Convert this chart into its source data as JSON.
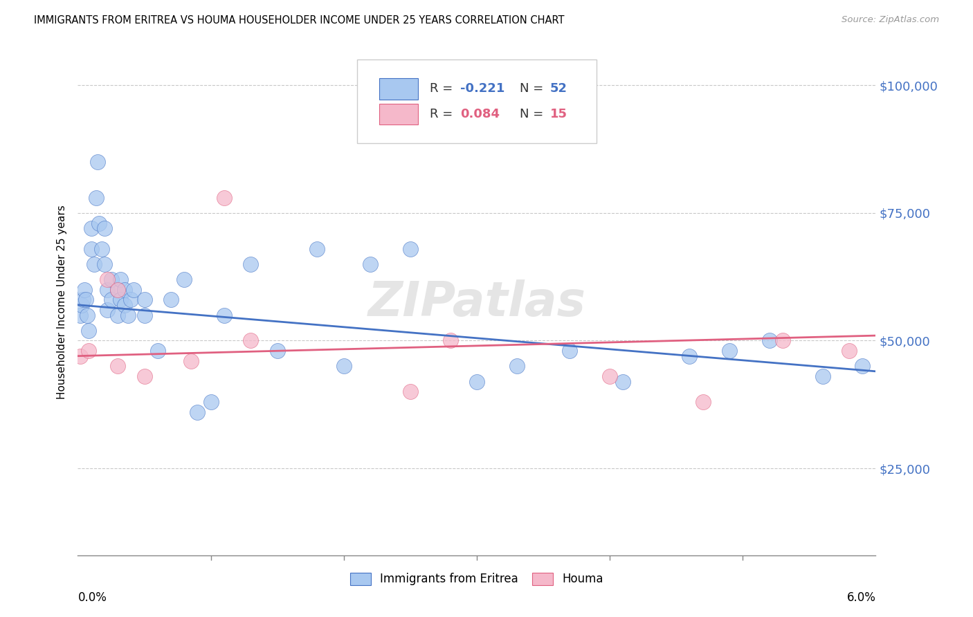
{
  "title": "IMMIGRANTS FROM ERITREA VS HOUMA HOUSEHOLDER INCOME UNDER 25 YEARS CORRELATION CHART",
  "source": "Source: ZipAtlas.com",
  "ylabel": "Householder Income Under 25 years",
  "ytick_labels": [
    "$25,000",
    "$50,000",
    "$75,000",
    "$100,000"
  ],
  "ytick_values": [
    25000,
    50000,
    75000,
    100000
  ],
  "xmin": 0.0,
  "xmax": 0.06,
  "ymin": 8000,
  "ymax": 107000,
  "legend1_r": "-0.221",
  "legend1_n": "52",
  "legend2_r": "0.084",
  "legend2_n": "15",
  "blue_color": "#a8c8f0",
  "pink_color": "#f5b8ca",
  "blue_line_color": "#4472c4",
  "pink_line_color": "#e06080",
  "watermark": "ZIPatlas",
  "background_color": "#ffffff",
  "grid_color": "#c8c8c8",
  "label_blue": "Immigrants from Eritrea",
  "label_pink": "Houma",
  "blue_x": [
    0.0002,
    0.0003,
    0.0004,
    0.0005,
    0.0006,
    0.0007,
    0.0008,
    0.001,
    0.001,
    0.0012,
    0.0014,
    0.0015,
    0.0016,
    0.0018,
    0.002,
    0.002,
    0.0022,
    0.0022,
    0.0025,
    0.0025,
    0.003,
    0.003,
    0.0032,
    0.0032,
    0.0035,
    0.0035,
    0.0038,
    0.004,
    0.0042,
    0.005,
    0.005,
    0.006,
    0.007,
    0.008,
    0.009,
    0.01,
    0.011,
    0.013,
    0.015,
    0.018,
    0.02,
    0.022,
    0.025,
    0.03,
    0.033,
    0.037,
    0.041,
    0.046,
    0.049,
    0.052,
    0.056,
    0.059
  ],
  "blue_y": [
    55000,
    57000,
    58000,
    60000,
    58000,
    55000,
    52000,
    72000,
    68000,
    65000,
    78000,
    85000,
    73000,
    68000,
    72000,
    65000,
    60000,
    56000,
    62000,
    58000,
    60000,
    55000,
    62000,
    58000,
    60000,
    57000,
    55000,
    58000,
    60000,
    58000,
    55000,
    48000,
    58000,
    62000,
    36000,
    38000,
    55000,
    65000,
    48000,
    68000,
    45000,
    65000,
    68000,
    42000,
    45000,
    48000,
    42000,
    47000,
    48000,
    50000,
    43000,
    45000
  ],
  "pink_x": [
    0.0002,
    0.0008,
    0.0022,
    0.003,
    0.003,
    0.005,
    0.0085,
    0.011,
    0.013,
    0.025,
    0.028,
    0.04,
    0.047,
    0.053,
    0.058
  ],
  "pink_y": [
    47000,
    48000,
    62000,
    60000,
    45000,
    43000,
    46000,
    78000,
    50000,
    40000,
    50000,
    43000,
    38000,
    50000,
    48000
  ],
  "xtick_positions": [
    0.01,
    0.02,
    0.03,
    0.04,
    0.05
  ]
}
